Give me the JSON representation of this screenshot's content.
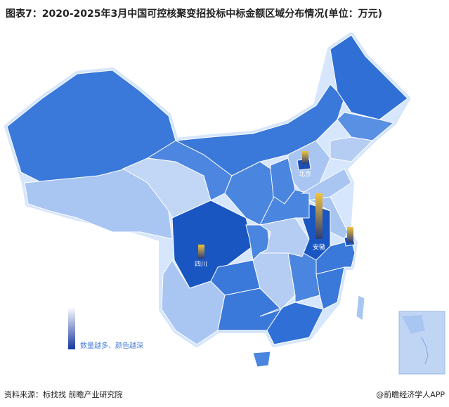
{
  "title": "图表7：2020-2025年3月中国可控核聚变招投标中标金额区域分布情况(单位：万元)",
  "map": {
    "labels": [
      "北京",
      "安徽",
      "四川"
    ],
    "legend": "数量越多、颜色越深"
  },
  "footer": {
    "source": "资料来源：标找找 前瞻产业研究院",
    "credit": "@前瞻经济学人APP"
  }
}
